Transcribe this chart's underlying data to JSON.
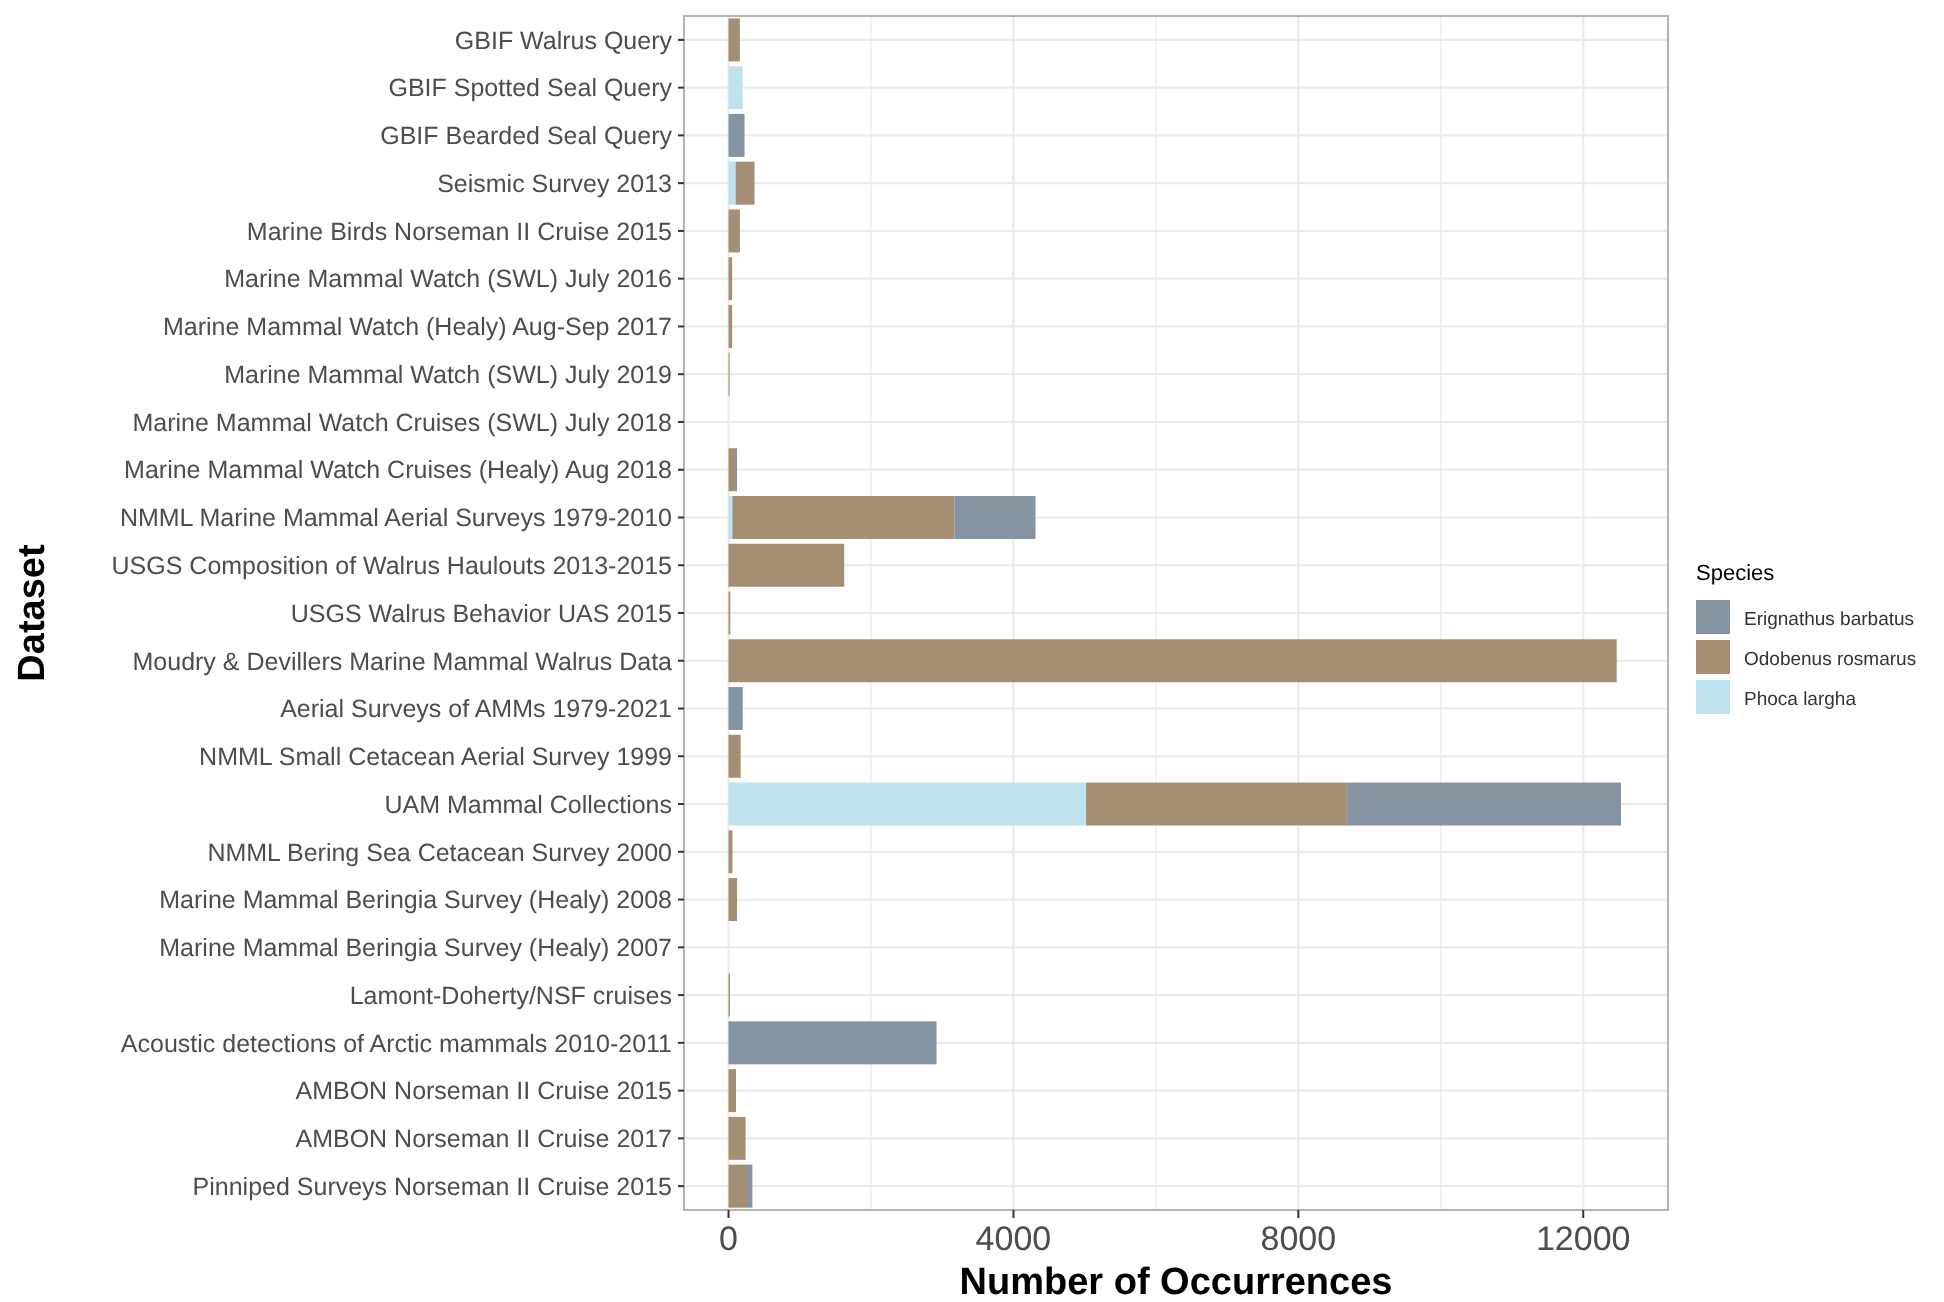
{
  "chart_data": {
    "type": "bar",
    "orientation": "horizontal",
    "stacked": true,
    "xlabel": "Number of Occurrences",
    "ylabel": "Dataset",
    "legend_title": "Species",
    "legend": "right",
    "grid": true,
    "categories": [
      "GBIF Walrus Query",
      "GBIF Spotted Seal Query",
      "GBIF Bearded Seal Query",
      "Seismic Survey 2013",
      "Marine Birds Norseman II Cruise 2015",
      "Marine Mammal Watch (SWL) July 2016",
      "Marine Mammal Watch (Healy) Aug-Sep 2017",
      "Marine Mammal Watch (SWL) July 2019",
      "Marine Mammal Watch Cruises (SWL) July 2018",
      "Marine Mammal Watch Cruises (Healy) Aug 2018",
      "NMML Marine Mammal Aerial Surveys 1979-2010",
      "USGS Composition of Walrus Haulouts 2013-2015",
      "USGS Walrus Behavior UAS 2015",
      "Moudry & Devillers Marine Mammal Walrus Data",
      "Aerial Surveys of AMMs 1979-2021",
      "NMML Small Cetacean Aerial Survey 1999",
      "UAM Mammal Collections",
      "NMML Bering Sea Cetacean Survey 2000",
      "Marine Mammal Beringia Survey (Healy) 2008",
      "Marine Mammal Beringia Survey (Healy) 2007",
      "Lamont-Doherty/NSF cruises",
      "Acoustic detections of Arctic mammals 2010-2011",
      "AMBON Norseman II Cruise 2015",
      "AMBON Norseman II Cruise 2017",
      "Pinniped Surveys Norseman II Cruise 2015"
    ],
    "series": [
      {
        "name": "Phoca largha",
        "color": "#bfe3ee",
        "values": [
          null,
          200,
          null,
          100,
          null,
          null,
          null,
          null,
          null,
          null,
          55,
          null,
          null,
          null,
          null,
          null,
          5020,
          null,
          null,
          null,
          null,
          null,
          null,
          null,
          null
        ]
      },
      {
        "name": "Odobenus rosmarus",
        "color": "#a58f72",
        "values": [
          160,
          null,
          null,
          265,
          160,
          50,
          50,
          15,
          null,
          90,
          3115,
          1625,
          25,
          12470,
          null,
          170,
          3665,
          55,
          120,
          null,
          20,
          null,
          105,
          240,
          260
        ]
      },
      {
        "name": "Erignathus barbatus",
        "color": "#8494a2",
        "values": [
          null,
          null,
          225,
          null,
          null,
          null,
          null,
          null,
          null,
          30,
          1140,
          null,
          null,
          null,
          200,
          null,
          3845,
          null,
          null,
          null,
          null,
          2920,
          null,
          null,
          75
        ]
      }
    ],
    "xlim": [
      -625,
      13190
    ],
    "xticks": [
      0,
      {
        "value": 2000,
        "label": null
      },
      4000,
      {
        "value": 6000,
        "label": null
      },
      8000,
      {
        "value": 10000,
        "label": null
      },
      12000
    ]
  }
}
